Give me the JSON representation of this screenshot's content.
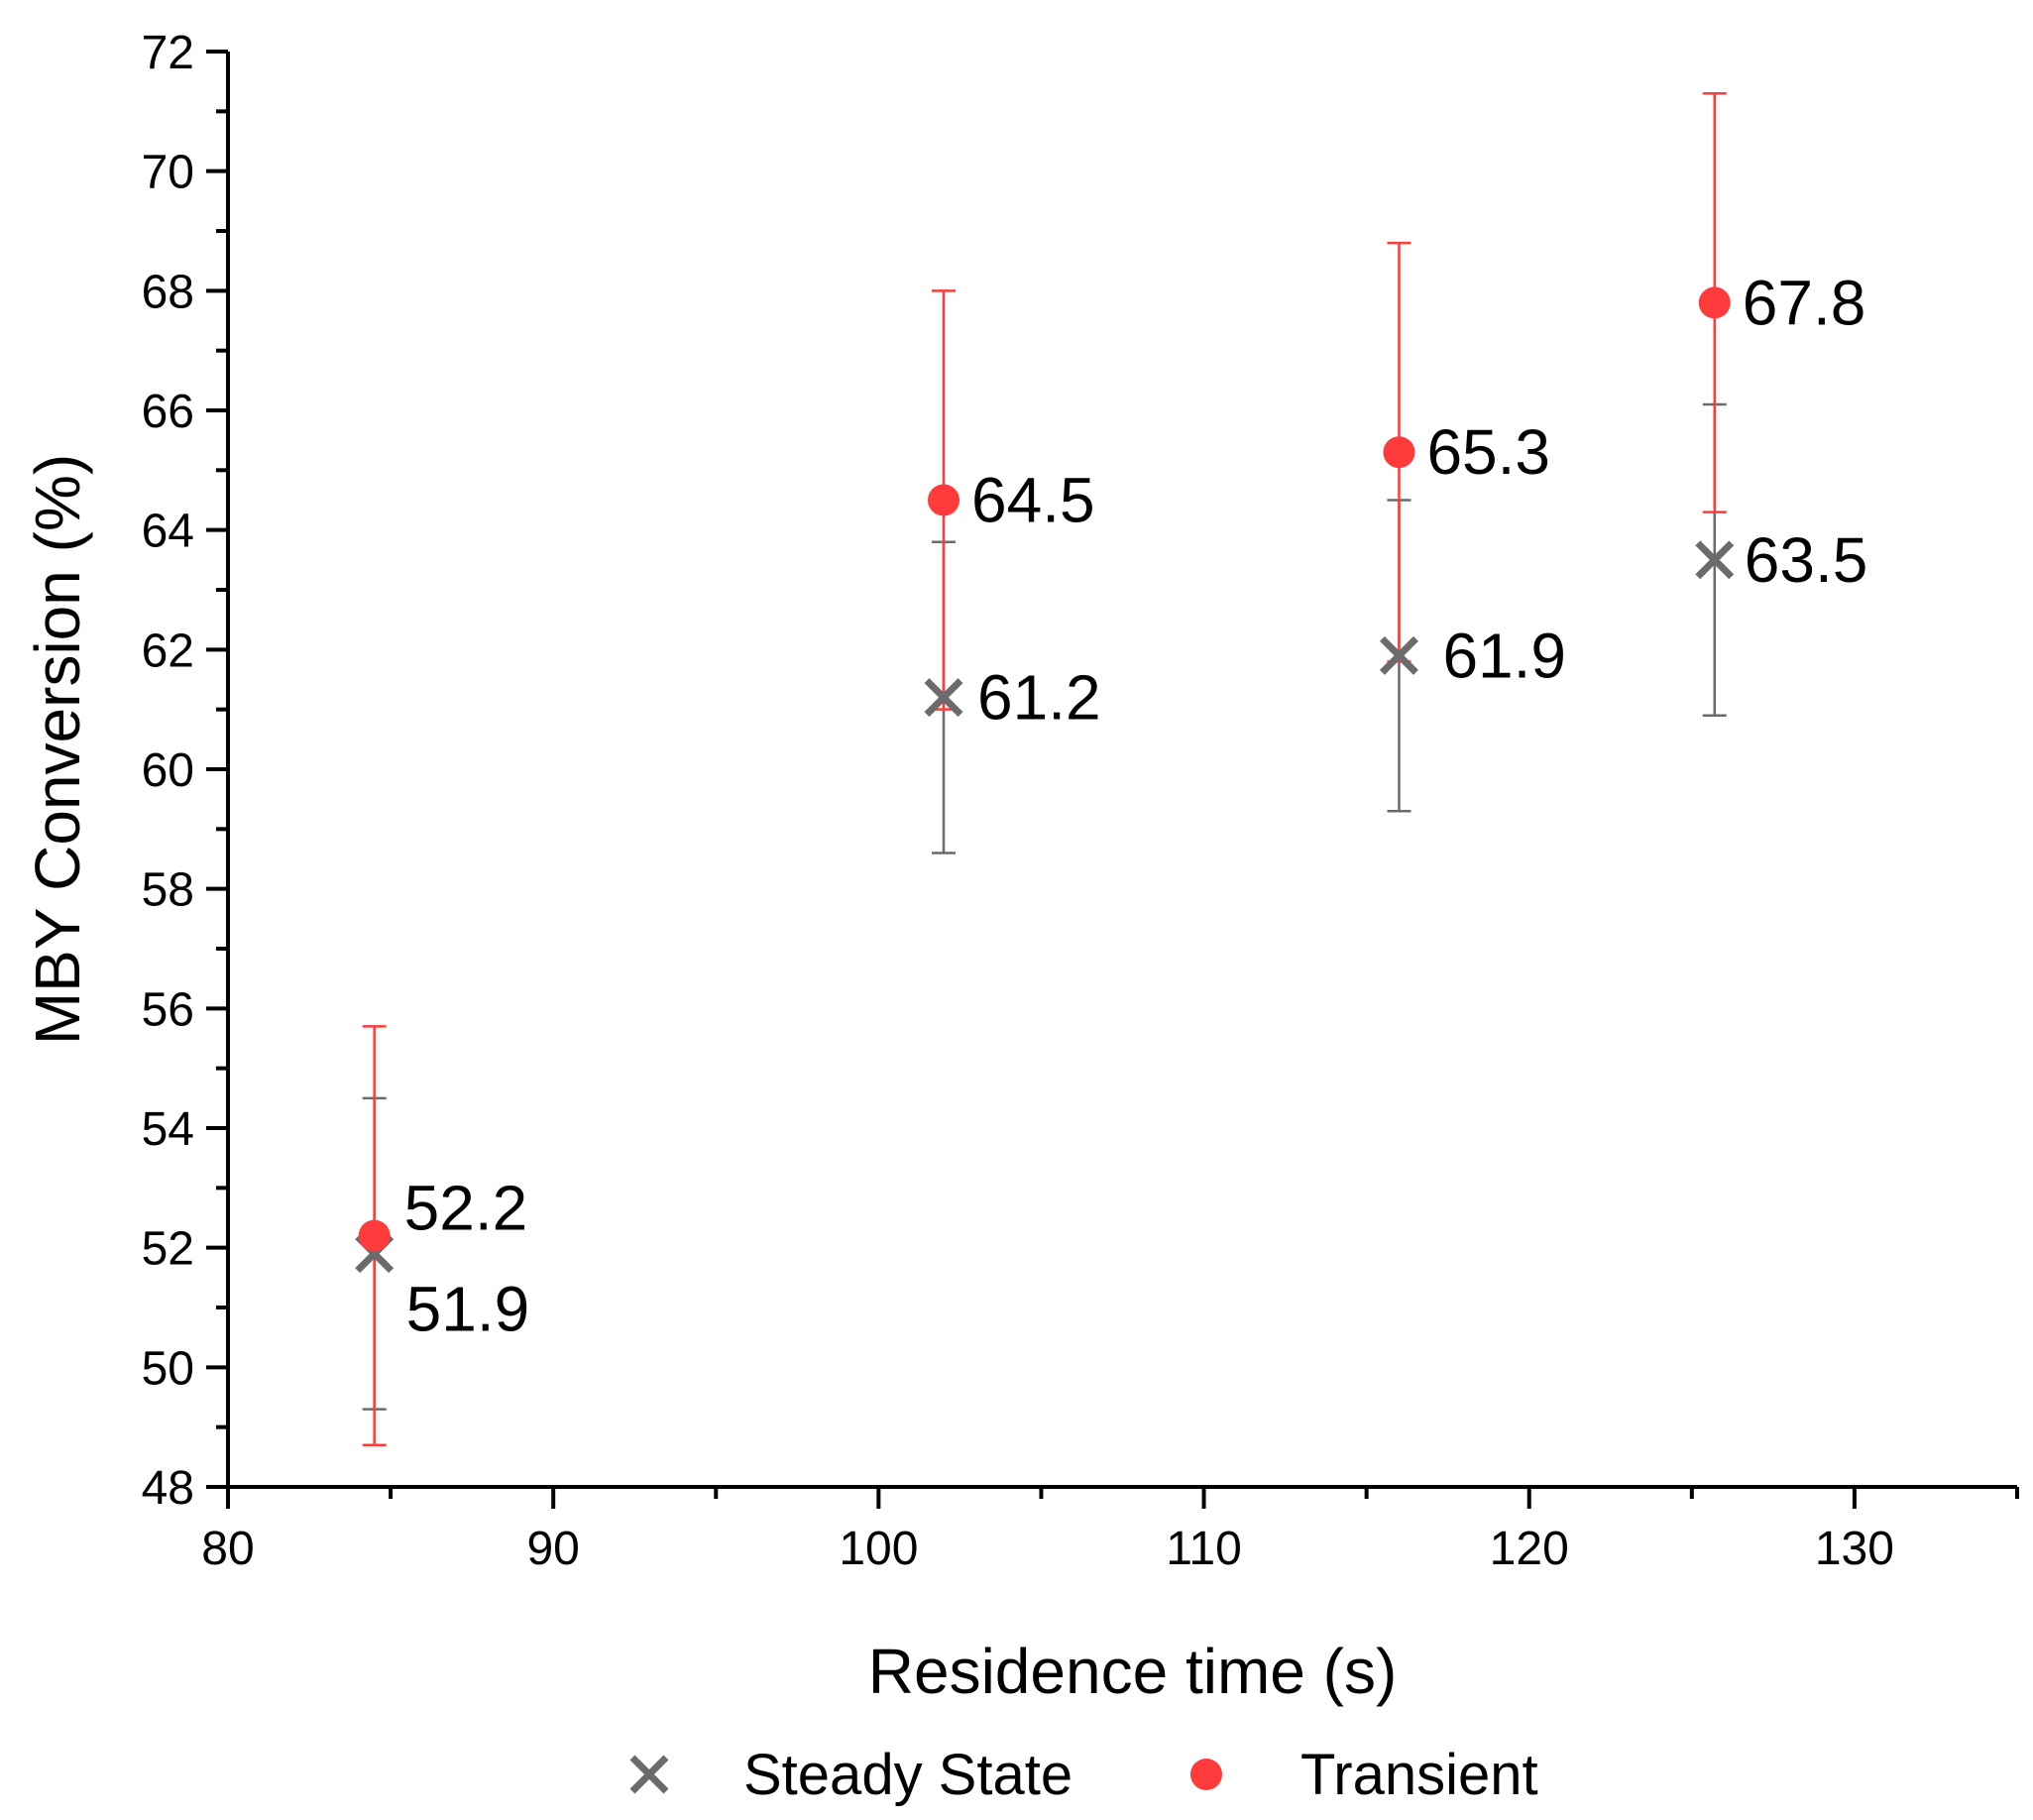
{
  "chart_data": {
    "type": "scatter",
    "xlabel": "Residence time (s)",
    "ylabel": "MBY Conversion (%)",
    "xlim": [
      80,
      135
    ],
    "ylim": [
      48,
      72
    ],
    "xticks": [
      80,
      90,
      100,
      110,
      120,
      130
    ],
    "yticks": [
      48,
      50,
      52,
      54,
      56,
      58,
      60,
      62,
      64,
      66,
      68,
      70,
      72
    ],
    "series": [
      {
        "name": "Steady State",
        "marker": "x",
        "color": "#6b6b6b",
        "errorColor": "#6b6b6b",
        "x": [
          84.5,
          102,
          116,
          125.7
        ],
        "y": [
          51.9,
          61.2,
          61.9,
          63.5
        ],
        "err_low": [
          49.3,
          58.6,
          59.3,
          60.9
        ],
        "err_high": [
          54.5,
          63.8,
          64.5,
          66.1
        ],
        "labels": [
          "51.9",
          "61.2",
          "61.9",
          "63.5"
        ]
      },
      {
        "name": "Transient",
        "marker": "circle",
        "color": "#ff3b3b",
        "errorColor": "#ff3b3b",
        "x": [
          84.5,
          102,
          116,
          125.7
        ],
        "y": [
          52.2,
          64.5,
          65.3,
          67.8
        ],
        "err_low": [
          48.7,
          61.0,
          61.8,
          64.3
        ],
        "err_high": [
          55.7,
          68.0,
          68.8,
          71.3
        ],
        "labels": [
          "52.2",
          "64.5",
          "65.3",
          "67.8"
        ]
      }
    ],
    "legend": {
      "position": "bottom-center"
    }
  }
}
